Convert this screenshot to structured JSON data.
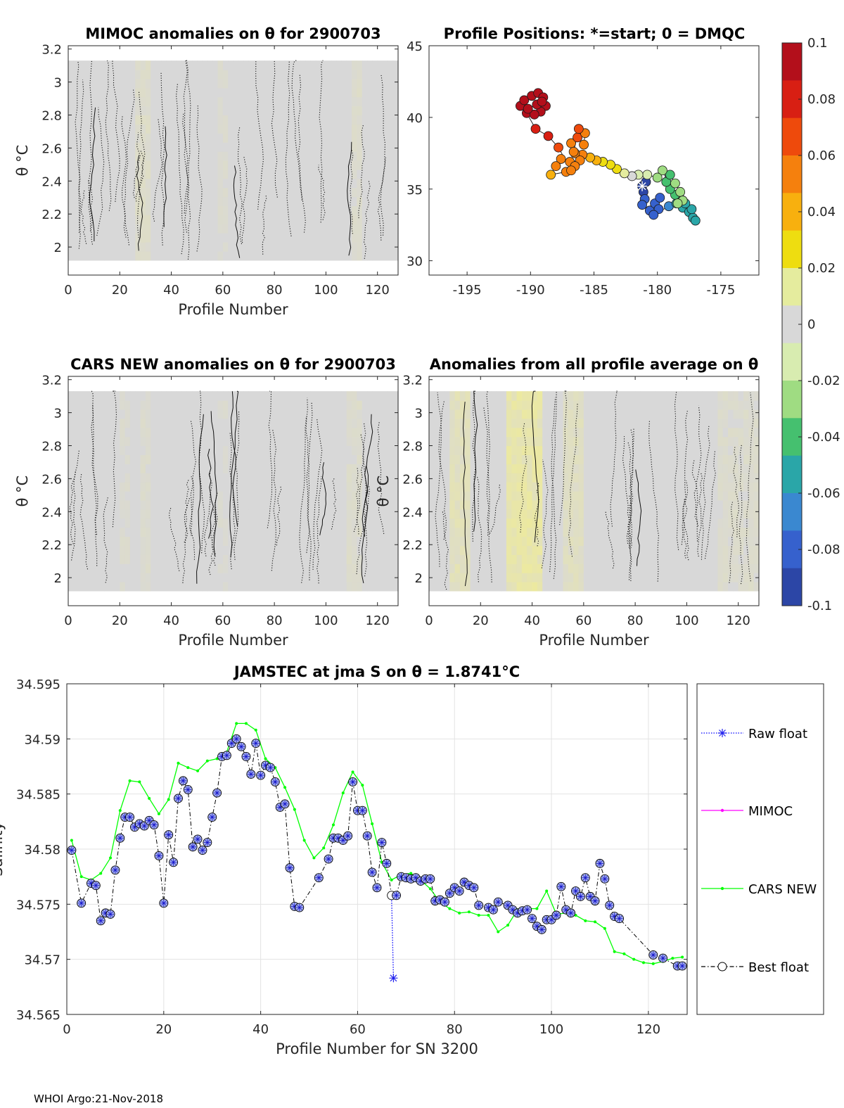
{
  "footer": "WHOI Argo:21-Nov-2018",
  "colorbar": {
    "ticks": [
      "0.1",
      "0.08",
      "0.06",
      "0.04",
      "0.02",
      "0",
      "-0.02",
      "-0.04",
      "-0.06",
      "-0.08",
      "-0.1"
    ],
    "colors": [
      "#b30f1b",
      "#d81f13",
      "#ee4a0c",
      "#f5800d",
      "#f8b00e",
      "#eedd10",
      "#e5ec9e",
      "#d8d8d8",
      "#d8ecb0",
      "#9fdc82",
      "#45c06f",
      "#2aa6a8",
      "#3a88d0",
      "#3661cd",
      "#2c46a6"
    ]
  },
  "chart_data": [
    {
      "type": "heatmap",
      "title": "MIMOC anomalies on θ  for 2900703",
      "xlabel": "Profile Number",
      "ylabel": "θ °C",
      "xlim": [
        0,
        128
      ],
      "ylim": [
        1.83,
        3.22
      ],
      "xticks": [
        "0",
        "20",
        "40",
        "60",
        "80",
        "100",
        "120"
      ],
      "yticks": [
        "2",
        "2.2",
        "2.4",
        "2.6",
        "2.8",
        "3",
        "3.2"
      ],
      "warm_bands": [
        [
          27,
          31,
          0.008
        ],
        [
          58,
          62,
          0.004
        ],
        [
          110,
          114,
          0.006
        ]
      ]
    },
    {
      "type": "scatter",
      "title": "Profile Positions: *=start; 0 = DMQC",
      "xlim": [
        -198,
        -172
      ],
      "ylim": [
        29,
        45
      ],
      "xticks": [
        "-195",
        "-190",
        "-185",
        "-180",
        "-175"
      ],
      "yticks": [
        "30",
        "35",
        "40",
        "45"
      ],
      "start": [
        -181.2,
        35.2
      ],
      "points": [
        [
          -181.2,
          35.2,
          -0.09
        ],
        [
          -180.9,
          35.5,
          -0.09
        ],
        [
          -181.1,
          34.8,
          -0.09
        ],
        [
          -181.0,
          34.3,
          -0.085
        ],
        [
          -181.2,
          33.9,
          -0.085
        ],
        [
          -180.6,
          33.5,
          -0.085
        ],
        [
          -180.2,
          34.0,
          -0.08
        ],
        [
          -179.8,
          34.4,
          -0.08
        ],
        [
          -179.9,
          33.6,
          -0.075
        ],
        [
          -180.3,
          33.2,
          -0.075
        ],
        [
          -179.1,
          33.8,
          -0.07
        ],
        [
          -178.5,
          34.0,
          -0.06
        ],
        [
          -178.0,
          33.7,
          -0.06
        ],
        [
          -177.5,
          33.4,
          -0.06
        ],
        [
          -177.2,
          33.0,
          -0.055
        ],
        [
          -177.0,
          32.8,
          -0.055
        ],
        [
          -177.3,
          33.6,
          -0.055
        ],
        [
          -177.8,
          34.0,
          -0.05
        ],
        [
          -178.2,
          34.3,
          -0.05
        ],
        [
          -178.6,
          34.6,
          -0.045
        ],
        [
          -179.0,
          35.0,
          -0.04
        ],
        [
          -179.3,
          35.5,
          -0.04
        ],
        [
          -179.0,
          36.0,
          -0.035
        ],
        [
          -178.6,
          35.4,
          -0.03
        ],
        [
          -178.2,
          34.8,
          -0.03
        ],
        [
          -178.0,
          34.2,
          -0.03
        ],
        [
          -178.4,
          34.0,
          -0.025
        ],
        [
          -179.6,
          36.3,
          -0.025
        ],
        [
          -180.0,
          35.8,
          -0.02
        ],
        [
          -180.8,
          36.0,
          -0.015
        ],
        [
          -181.5,
          36.0,
          -0.01
        ],
        [
          -182.0,
          35.9,
          0.005
        ],
        [
          -182.6,
          36.1,
          0.01
        ],
        [
          -183.2,
          36.4,
          0.02
        ],
        [
          -183.7,
          36.7,
          0.025
        ],
        [
          -184.3,
          36.9,
          0.03
        ],
        [
          -184.8,
          37.0,
          0.035
        ],
        [
          -185.3,
          37.2,
          0.045
        ],
        [
          -185.9,
          37.4,
          0.05
        ],
        [
          -186.5,
          37.5,
          0.055
        ],
        [
          -186.8,
          38.2,
          0.06
        ],
        [
          -186.3,
          38.6,
          0.065
        ],
        [
          -185.8,
          38.1,
          0.06
        ],
        [
          -185.7,
          38.9,
          0.06
        ],
        [
          -186.2,
          39.2,
          0.065
        ],
        [
          -186.6,
          37.6,
          0.06
        ],
        [
          -186.1,
          37.0,
          0.055
        ],
        [
          -186.9,
          36.9,
          0.055
        ],
        [
          -187.6,
          37.1,
          0.05
        ],
        [
          -188.0,
          36.6,
          0.05
        ],
        [
          -188.4,
          36.0,
          0.045
        ],
        [
          -187.2,
          36.2,
          0.05
        ],
        [
          -186.5,
          36.6,
          0.055
        ],
        [
          -186.8,
          36.3,
          0.05
        ],
        [
          -187.8,
          37.9,
          0.07
        ],
        [
          -188.6,
          38.7,
          0.075
        ],
        [
          -189.6,
          39.2,
          0.08
        ],
        [
          -190.3,
          40.3,
          0.09
        ],
        [
          -190.8,
          40.8,
          0.095
        ],
        [
          -190.5,
          41.2,
          0.1
        ],
        [
          -189.9,
          41.5,
          0.1
        ],
        [
          -189.4,
          41.7,
          0.1
        ],
        [
          -189.0,
          41.4,
          0.1
        ],
        [
          -188.8,
          40.8,
          0.1
        ],
        [
          -189.2,
          40.4,
          0.1
        ],
        [
          -189.7,
          40.2,
          0.1
        ],
        [
          -190.2,
          40.6,
          0.1
        ],
        [
          -189.5,
          40.9,
          0.1
        ],
        [
          -189.1,
          41.1,
          0.1
        ]
      ]
    },
    {
      "type": "heatmap",
      "title": "CARS NEW anomalies on θ for 2900703",
      "xlabel": "Profile Number",
      "ylabel": "θ °C",
      "xlim": [
        0,
        128
      ],
      "ylim": [
        1.83,
        3.22
      ],
      "xticks": [
        "0",
        "20",
        "40",
        "60",
        "80",
        "100",
        "120"
      ],
      "yticks": [
        "2",
        "2.2",
        "2.4",
        "2.6",
        "2.8",
        "3",
        "3.2"
      ],
      "warm_bands": [
        [
          20,
          24,
          0.004
        ],
        [
          28,
          32,
          0.005
        ],
        [
          58,
          62,
          0.003
        ],
        [
          108,
          114,
          0.006
        ]
      ]
    },
    {
      "type": "heatmap",
      "title": "Anomalies from all profile average on θ",
      "xlabel": "Profile Number",
      "ylabel": "θ °C",
      "xlim": [
        0,
        128
      ],
      "ylim": [
        1.83,
        3.22
      ],
      "xticks": [
        "0",
        "20",
        "40",
        "60",
        "80",
        "100",
        "120"
      ],
      "yticks": [
        "2",
        "2.2",
        "2.4",
        "2.6",
        "2.8",
        "3",
        "3.2"
      ],
      "warm_bands": [
        [
          8,
          16,
          0.015
        ],
        [
          30,
          44,
          0.025
        ],
        [
          52,
          60,
          0.012
        ],
        [
          112,
          127,
          0.006
        ]
      ]
    },
    {
      "type": "line",
      "title": "JAMSTEC at jma S on θ = 1.8741°C",
      "xlabel": "Profile Number for SN 3200",
      "ylabel": "Salinity",
      "xlim": [
        0,
        128
      ],
      "ylim": [
        34.565,
        34.595
      ],
      "xticks": [
        "0",
        "20",
        "40",
        "60",
        "80",
        "100",
        "120"
      ],
      "yticks": [
        "34.565",
        "34.57",
        "34.575",
        "34.58",
        "34.585",
        "34.59",
        "34.595"
      ],
      "legend": [
        "Raw float",
        "MIMOC",
        "CARS NEW",
        "Best float"
      ],
      "series": [
        {
          "name": "CARS NEW",
          "color": "#00ff00",
          "x": [
            1,
            3,
            5,
            7,
            9,
            11,
            13,
            15,
            17,
            19,
            21,
            23,
            25,
            27,
            29,
            31,
            33,
            35,
            37,
            39,
            41,
            43,
            45,
            47,
            49,
            51,
            53,
            55,
            57,
            59,
            61,
            63,
            65,
            67,
            69,
            71,
            73,
            75,
            77,
            79,
            81,
            83,
            85,
            87,
            89,
            91,
            93,
            95,
            97,
            99,
            101,
            103,
            105,
            107,
            109,
            111,
            113,
            115,
            117,
            119,
            121,
            123,
            125,
            127
          ],
          "y": [
            34.5808,
            34.5775,
            34.5772,
            34.5778,
            34.5792,
            34.5835,
            34.5862,
            34.5861,
            34.5846,
            34.5832,
            34.5845,
            34.5878,
            34.5874,
            34.5871,
            34.588,
            34.5882,
            34.5888,
            34.5914,
            34.5914,
            34.5908,
            34.5882,
            34.5874,
            34.5856,
            34.5836,
            34.5808,
            34.5792,
            34.5801,
            34.5822,
            34.5851,
            34.587,
            34.5858,
            34.5823,
            34.5788,
            34.5772,
            34.5777,
            34.5778,
            34.5772,
            34.5764,
            34.5752,
            34.5746,
            34.5742,
            34.5743,
            34.574,
            34.574,
            34.5725,
            34.5731,
            34.5745,
            34.5746,
            34.5746,
            34.5762,
            34.5741,
            34.5742,
            34.574,
            34.5735,
            34.5734,
            34.5728,
            34.5707,
            34.5705,
            34.57,
            34.5697,
            34.5696,
            34.5698,
            34.5701,
            34.5702
          ]
        },
        {
          "name": "Best float",
          "color": "#000000",
          "x": [
            1,
            3,
            5,
            6,
            7,
            8,
            9,
            10,
            11,
            12,
            13,
            14,
            15,
            16,
            17,
            18,
            19,
            20,
            21,
            22,
            23,
            24,
            25,
            26,
            27,
            28,
            29,
            30,
            31,
            32,
            33,
            34,
            35,
            36,
            37,
            38,
            39,
            40,
            41,
            42,
            43,
            44,
            45,
            46,
            47,
            48,
            52,
            54,
            55,
            56,
            57,
            58,
            59,
            60,
            61,
            62,
            63,
            64,
            65,
            66,
            67,
            68,
            69,
            70,
            71,
            72,
            73,
            74,
            75,
            76,
            77,
            78,
            79,
            80,
            81,
            82,
            83,
            84,
            85,
            87,
            88,
            89,
            91,
            92,
            93,
            94,
            95,
            96,
            97,
            98,
            99,
            100,
            101,
            102,
            103,
            104,
            105,
            106,
            107,
            108,
            109,
            110,
            111,
            112,
            113,
            114,
            121,
            123,
            126,
            127
          ],
          "y": [
            34.5799,
            34.5751,
            34.5769,
            34.5767,
            34.5735,
            34.5742,
            34.5741,
            34.5781,
            34.581,
            34.5829,
            34.5829,
            34.582,
            34.5823,
            34.5821,
            34.5826,
            34.5822,
            34.5794,
            34.5751,
            34.5813,
            34.5788,
            34.5846,
            34.5862,
            34.5854,
            34.5802,
            34.5809,
            34.5799,
            34.5806,
            34.5829,
            34.5851,
            34.5884,
            34.5885,
            34.5896,
            34.59,
            34.5893,
            34.5884,
            34.5868,
            34.5896,
            34.5867,
            34.5876,
            34.5874,
            34.5861,
            34.5838,
            34.5841,
            34.5783,
            34.5748,
            34.5747,
            34.5774,
            34.5791,
            34.581,
            34.581,
            34.5808,
            34.5812,
            34.5861,
            34.5835,
            34.5835,
            34.5812,
            34.5779,
            34.5765,
            34.5806,
            34.5787,
            34.5758,
            34.5758,
            34.5775,
            34.5774,
            34.5773,
            34.5774,
            34.5771,
            34.5773,
            34.5773,
            34.5753,
            34.5754,
            34.5752,
            34.576,
            34.5765,
            34.5762,
            34.577,
            34.5767,
            34.5765,
            34.5749,
            34.5747,
            34.5745,
            34.5752,
            34.5749,
            34.5745,
            34.5742,
            34.5744,
            34.5745,
            34.5737,
            34.573,
            34.5727,
            34.5736,
            34.5736,
            34.574,
            34.5766,
            34.5745,
            34.5742,
            34.5762,
            34.5757,
            34.5774,
            34.5757,
            34.5753,
            34.5787,
            34.5773,
            34.5749,
            34.5739,
            34.5737,
            34.5704,
            34.5701,
            34.5694,
            34.5694
          ]
        },
        {
          "name": "Raw float",
          "color": "#0000ff",
          "x": [
            67,
            67.4
          ],
          "y": [
            34.5758,
            34.5683
          ]
        }
      ]
    }
  ]
}
